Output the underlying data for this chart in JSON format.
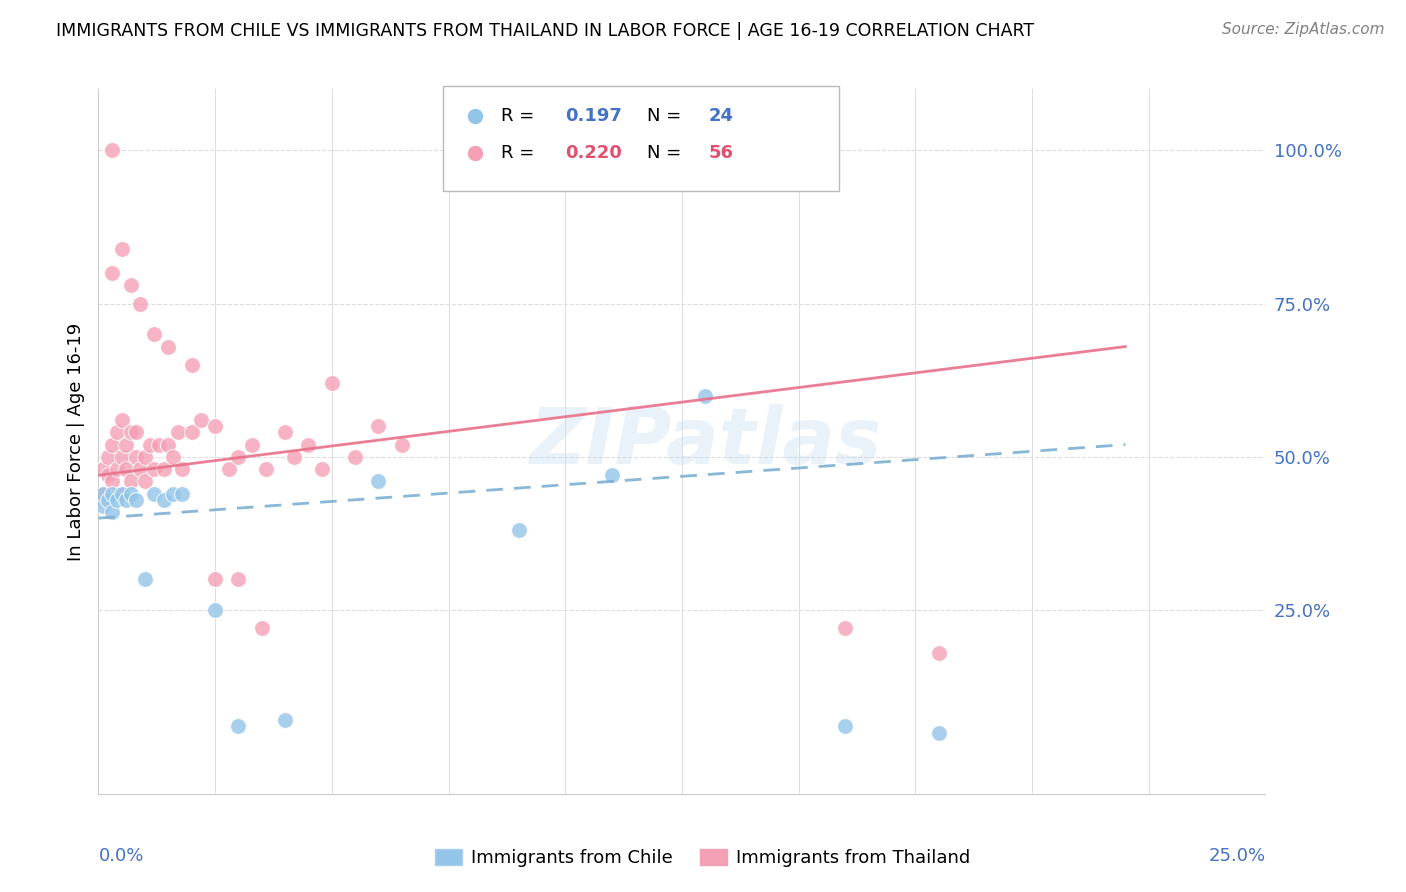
{
  "title": "IMMIGRANTS FROM CHILE VS IMMIGRANTS FROM THAILAND IN LABOR FORCE | AGE 16-19 CORRELATION CHART",
  "source": "Source: ZipAtlas.com",
  "ylabel": "In Labor Force | Age 16-19",
  "x_range": [
    0.0,
    0.25
  ],
  "y_range": [
    -0.05,
    1.1
  ],
  "chile_color": "#92C5E8",
  "thailand_color": "#F4A0B5",
  "chile_line_color": "#7BAFD4",
  "thailand_line_color": "#E8708A",
  "chile_R": 0.197,
  "chile_N": 24,
  "thailand_R": 0.22,
  "thailand_N": 56,
  "watermark": "ZIPatlas",
  "legend_R_color": "#4472C4",
  "legend_N_color_chile": "#4472C4",
  "legend_N_color_thai": "#E05070",
  "right_tick_color": "#4472C4",
  "bottom_label_color": "#4472C4",
  "chile_x": [
    0.001,
    0.001,
    0.002,
    0.003,
    0.003,
    0.004,
    0.005,
    0.006,
    0.007,
    0.008,
    0.01,
    0.012,
    0.014,
    0.016,
    0.018,
    0.025,
    0.03,
    0.04,
    0.06,
    0.09,
    0.11,
    0.13,
    0.16,
    0.18
  ],
  "chile_y": [
    0.42,
    0.44,
    0.43,
    0.44,
    0.41,
    0.43,
    0.44,
    0.43,
    0.44,
    0.43,
    0.3,
    0.44,
    0.43,
    0.44,
    0.44,
    0.25,
    0.06,
    0.07,
    0.46,
    0.38,
    0.47,
    0.6,
    0.06,
    0.05
  ],
  "thailand_x": [
    0.001,
    0.001,
    0.002,
    0.002,
    0.003,
    0.003,
    0.004,
    0.004,
    0.005,
    0.005,
    0.005,
    0.006,
    0.006,
    0.007,
    0.007,
    0.008,
    0.008,
    0.009,
    0.01,
    0.01,
    0.011,
    0.012,
    0.013,
    0.014,
    0.015,
    0.016,
    0.017,
    0.018,
    0.02,
    0.022,
    0.025,
    0.028,
    0.03,
    0.033,
    0.036,
    0.04,
    0.042,
    0.045,
    0.048,
    0.05,
    0.055,
    0.06,
    0.065,
    0.003,
    0.005,
    0.007,
    0.009,
    0.012,
    0.015,
    0.02,
    0.16,
    0.18,
    0.025,
    0.03,
    0.035,
    0.003
  ],
  "thailand_y": [
    0.44,
    0.48,
    0.47,
    0.5,
    0.46,
    0.52,
    0.48,
    0.54,
    0.5,
    0.56,
    0.44,
    0.48,
    0.52,
    0.46,
    0.54,
    0.5,
    0.54,
    0.48,
    0.5,
    0.46,
    0.52,
    0.48,
    0.52,
    0.48,
    0.52,
    0.5,
    0.54,
    0.48,
    0.54,
    0.56,
    0.55,
    0.48,
    0.5,
    0.52,
    0.48,
    0.54,
    0.5,
    0.52,
    0.48,
    0.62,
    0.5,
    0.55,
    0.52,
    0.8,
    0.84,
    0.78,
    0.75,
    0.7,
    0.68,
    0.65,
    0.22,
    0.18,
    0.3,
    0.3,
    0.22,
    1.0
  ],
  "chile_trend_x": [
    0.0,
    0.22
  ],
  "chile_trend_y": [
    0.4,
    0.52
  ],
  "thailand_trend_x": [
    0.0,
    0.22
  ],
  "thailand_trend_y": [
    0.47,
    0.68
  ]
}
